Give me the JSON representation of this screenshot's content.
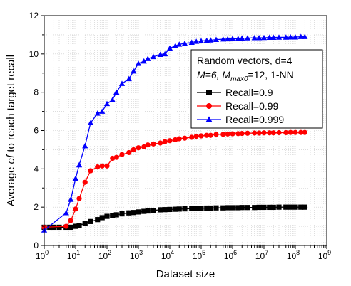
{
  "chart_data": {
    "type": "line",
    "xlabel": "Dataset size",
    "ylabel_parts": [
      "Average ",
      "ef",
      " to reach target recall"
    ],
    "x_scale": "log",
    "xlim": [
      1,
      1000000000
    ],
    "ylim": [
      0,
      12
    ],
    "grid": true,
    "y_ticks": [
      "0",
      "2",
      "4",
      "6",
      "8",
      "10",
      "12"
    ],
    "x_ticks": [
      {
        "base": "10",
        "exp": "0"
      },
      {
        "base": "10",
        "exp": "1"
      },
      {
        "base": "10",
        "exp": "2"
      },
      {
        "base": "10",
        "exp": "3"
      },
      {
        "base": "10",
        "exp": "4"
      },
      {
        "base": "10",
        "exp": "5"
      },
      {
        "base": "10",
        "exp": "6"
      },
      {
        "base": "10",
        "exp": "7"
      },
      {
        "base": "10",
        "exp": "8"
      },
      {
        "base": "10",
        "exp": "9"
      }
    ],
    "legend": {
      "position": "top-right",
      "title_line1": "Random vectors, d=4",
      "title_line2_parts": [
        "M=6, ",
        "M",
        "max0",
        "=12, 1-NN"
      ]
    },
    "series": [
      {
        "name": "Recall=0.9",
        "color": "#000000",
        "marker": "square",
        "x": [
          1,
          1.5,
          2,
          3,
          5,
          7,
          10,
          13,
          20,
          30,
          50,
          70,
          100,
          150,
          200,
          300,
          500,
          700,
          1000,
          1500,
          2000,
          3000,
          5000,
          7000,
          10000,
          15000,
          20000,
          30000,
          50000,
          70000,
          100000,
          150000,
          200000,
          300000,
          500000,
          700000,
          1000000,
          1500000,
          2000000,
          3000000,
          5000000,
          7000000,
          10000000,
          15000000,
          20000000,
          30000000,
          50000000,
          70000000,
          100000000,
          150000000,
          200000000
        ],
        "y": [
          0.95,
          0.95,
          0.95,
          0.95,
          0.95,
          0.95,
          1.0,
          1.05,
          1.15,
          1.25,
          1.35,
          1.45,
          1.52,
          1.57,
          1.6,
          1.65,
          1.7,
          1.72,
          1.75,
          1.78,
          1.8,
          1.83,
          1.86,
          1.87,
          1.88,
          1.89,
          1.9,
          1.91,
          1.92,
          1.93,
          1.94,
          1.95,
          1.95,
          1.96,
          1.96,
          1.97,
          1.97,
          1.97,
          1.98,
          1.98,
          1.98,
          1.99,
          1.99,
          1.99,
          1.99,
          2.0,
          2.0,
          2.0,
          2.0,
          2.0,
          2.0
        ]
      },
      {
        "name": "Recall=0.99",
        "color": "#ff0000",
        "marker": "circle",
        "x": [
          1,
          5,
          7,
          10,
          13,
          20,
          30,
          50,
          70,
          100,
          150,
          200,
          300,
          500,
          700,
          1000,
          1500,
          2000,
          3000,
          5000,
          7000,
          10000,
          15000,
          20000,
          30000,
          50000,
          70000,
          100000,
          150000,
          200000,
          300000,
          500000,
          700000,
          1000000,
          1500000,
          2000000,
          3000000,
          5000000,
          7000000,
          10000000,
          15000000,
          20000000,
          30000000,
          50000000,
          70000000,
          100000000,
          150000000,
          200000000
        ],
        "y": [
          0.95,
          1.0,
          1.3,
          1.9,
          2.45,
          3.3,
          3.9,
          4.1,
          4.15,
          4.15,
          4.55,
          4.6,
          4.75,
          4.85,
          5.0,
          5.1,
          5.15,
          5.25,
          5.3,
          5.35,
          5.42,
          5.47,
          5.52,
          5.57,
          5.6,
          5.65,
          5.7,
          5.72,
          5.75,
          5.75,
          5.8,
          5.8,
          5.82,
          5.83,
          5.84,
          5.85,
          5.86,
          5.87,
          5.87,
          5.88,
          5.88,
          5.88,
          5.89,
          5.89,
          5.9,
          5.9,
          5.9,
          5.9
        ]
      },
      {
        "name": "Recall=0.999",
        "color": "#0000ff",
        "marker": "triangle",
        "x": [
          1,
          5,
          7,
          10,
          13,
          20,
          30,
          50,
          70,
          100,
          150,
          200,
          300,
          500,
          700,
          1000,
          1500,
          2000,
          3000,
          5000,
          7000,
          10000,
          15000,
          20000,
          30000,
          50000,
          70000,
          100000,
          150000,
          200000,
          300000,
          500000,
          700000,
          1000000,
          1500000,
          2000000,
          3000000,
          5000000,
          7000000,
          10000000,
          15000000,
          20000000,
          30000000,
          50000000,
          70000000,
          100000000,
          150000000,
          200000000
        ],
        "y": [
          0.8,
          1.7,
          2.4,
          3.5,
          4.2,
          5.2,
          6.4,
          6.9,
          7.0,
          7.4,
          7.6,
          8.0,
          8.45,
          8.7,
          9.1,
          9.5,
          9.62,
          9.75,
          9.85,
          9.97,
          10.0,
          10.3,
          10.42,
          10.5,
          10.55,
          10.6,
          10.65,
          10.68,
          10.7,
          10.72,
          10.75,
          10.77,
          10.78,
          10.8,
          10.8,
          10.82,
          10.83,
          10.84,
          10.84,
          10.85,
          10.86,
          10.86,
          10.87,
          10.87,
          10.88,
          10.88,
          10.9,
          10.9
        ]
      }
    ]
  }
}
